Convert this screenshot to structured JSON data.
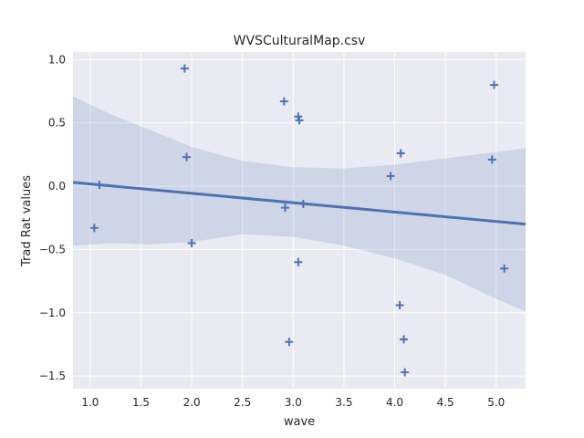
{
  "chart_data": {
    "type": "scatter",
    "title": "WVSCulturalMap.csv",
    "xlabel": "wave",
    "ylabel": "Trad Rat values",
    "xlim": [
      0.83,
      5.29
    ],
    "ylim": [
      -1.6,
      1.06
    ],
    "x_ticks": [
      1.0,
      1.5,
      2.0,
      2.5,
      3.0,
      3.5,
      4.0,
      4.5,
      5.0
    ],
    "x_tick_labels": [
      "1.0",
      "1.5",
      "2.0",
      "2.5",
      "3.0",
      "3.5",
      "4.0",
      "4.5",
      "5.0"
    ],
    "y_ticks": [
      1.0,
      0.5,
      0.0,
      -0.5,
      -1.0,
      -1.5
    ],
    "y_tick_labels": [
      "1.0",
      "0.5",
      "0.0",
      "−0.5",
      "−1.0",
      "−1.5"
    ],
    "grid": true,
    "marker": "plus",
    "colors": {
      "background": "#eaeaf2",
      "grid": "#ffffff",
      "series": "#4c72b0",
      "band": "#4c72b0"
    },
    "points": [
      {
        "x": 1.04,
        "y": -0.33
      },
      {
        "x": 1.09,
        "y": 0.01
      },
      {
        "x": 1.93,
        "y": 0.93
      },
      {
        "x": 1.95,
        "y": 0.23
      },
      {
        "x": 2.0,
        "y": -0.45
      },
      {
        "x": 2.91,
        "y": 0.67
      },
      {
        "x": 2.92,
        "y": -0.17
      },
      {
        "x": 2.96,
        "y": -1.23
      },
      {
        "x": 3.05,
        "y": 0.55
      },
      {
        "x": 3.06,
        "y": 0.52
      },
      {
        "x": 3.05,
        "y": -0.6
      },
      {
        "x": 3.1,
        "y": -0.14
      },
      {
        "x": 3.96,
        "y": 0.08
      },
      {
        "x": 4.06,
        "y": 0.26
      },
      {
        "x": 4.05,
        "y": -0.94
      },
      {
        "x": 4.09,
        "y": -1.21
      },
      {
        "x": 4.1,
        "y": -1.47
      },
      {
        "x": 4.96,
        "y": 0.21
      },
      {
        "x": 4.98,
        "y": 0.8
      },
      {
        "x": 5.08,
        "y": -0.65
      }
    ],
    "regression": {
      "x": [
        0.83,
        5.29
      ],
      "y": [
        0.03,
        -0.3
      ]
    },
    "ci_band": {
      "x": [
        0.83,
        1.2,
        1.6,
        2.0,
        2.5,
        3.0,
        3.5,
        4.0,
        4.5,
        5.0,
        5.29
      ],
      "upper": [
        0.71,
        0.57,
        0.44,
        0.31,
        0.2,
        0.15,
        0.14,
        0.17,
        0.22,
        0.27,
        0.3
      ],
      "lower": [
        -0.47,
        -0.45,
        -0.46,
        -0.44,
        -0.38,
        -0.4,
        -0.47,
        -0.57,
        -0.7,
        -0.89,
        -0.99
      ]
    }
  }
}
